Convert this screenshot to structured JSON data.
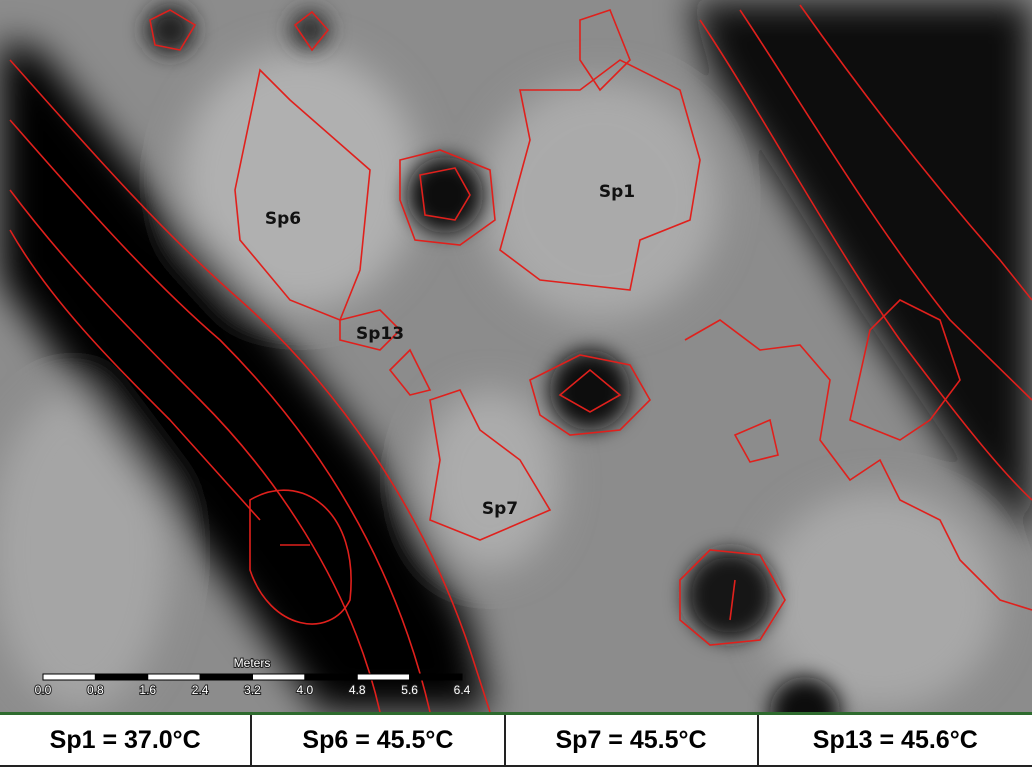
{
  "map": {
    "spots": [
      "Sp1",
      "Sp6",
      "Sp7",
      "Sp13"
    ],
    "scale": {
      "title": "Meters",
      "ticks": [
        "0.0",
        "0.8",
        "1.6",
        "2.4",
        "3.2",
        "4.0",
        "4.8",
        "5.6",
        "6.4"
      ]
    }
  },
  "table": {
    "rows": [
      [
        "Sp1 = 37.0°C",
        "Sp6 = 45.5°C",
        "Sp7 = 45.5°C",
        "Sp13 = 45.6°C"
      ]
    ]
  }
}
